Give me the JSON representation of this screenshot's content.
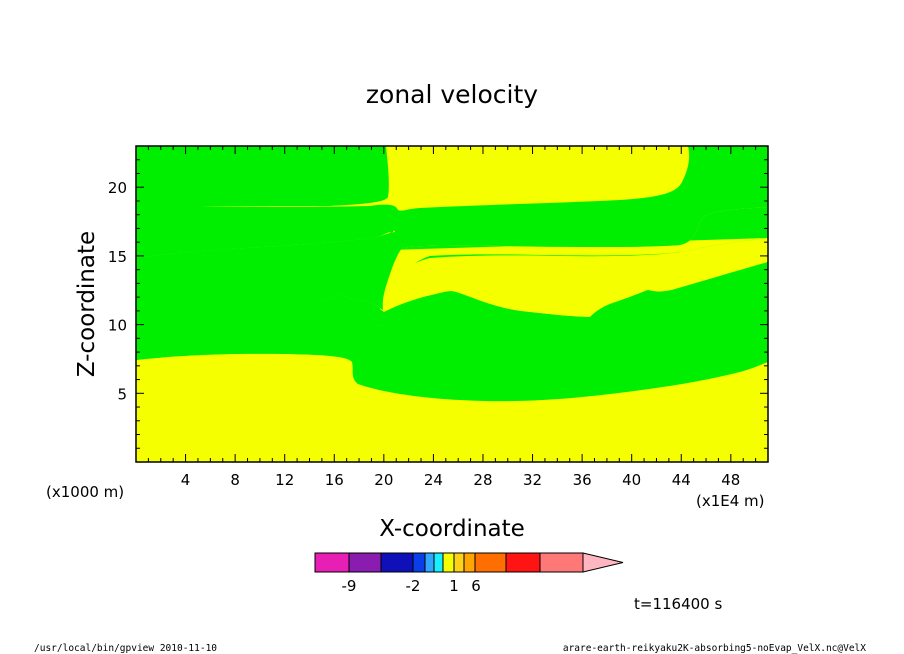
{
  "chart_data": {
    "type": "filled-contour",
    "title": "zonal velocity",
    "xlabel": "X-coordinate",
    "ylabel": "Z-coordinate",
    "x_unit_note": "(x1E4 m)",
    "y_unit_note": "(x1000 m)",
    "xlim": [
      0,
      51
    ],
    "ylim": [
      0,
      23
    ],
    "x_ticks": [
      "4",
      "8",
      "12",
      "16",
      "20",
      "24",
      "28",
      "32",
      "36",
      "40",
      "44",
      "48"
    ],
    "y_ticks": [
      "5",
      "10",
      "15",
      "20"
    ],
    "region_colors": {
      "low": "#f5ff00",
      "high": "#00ee00"
    },
    "colorbar": {
      "colors": [
        "#e81fb4",
        "#8a1cb0",
        "#1010b8",
        "#0a3ee8",
        "#2fa6ff",
        "#18f0ff",
        "#f5ff00",
        "#ffd21a",
        "#ffa400",
        "#ff6e00",
        "#ff1414",
        "#ff7878",
        "#ffb6c0"
      ],
      "labels": [
        "-9",
        "-2",
        "1",
        "6"
      ]
    },
    "time_label": "t=116400 s"
  },
  "footer": {
    "left": "/usr/local/bin/gpview  2010-11-10",
    "right": "arare-earth-reikyaku2K-absorbing5-noEvap_VelX.nc@VelX"
  }
}
